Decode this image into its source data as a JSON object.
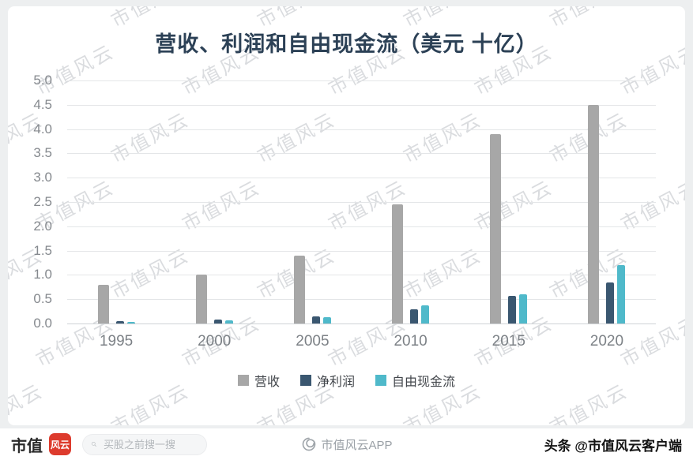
{
  "chart_data": {
    "type": "bar",
    "title": "营收、利润和自由现金流（美元 十亿）",
    "categories": [
      "1995",
      "2000",
      "2005",
      "2010",
      "2015",
      "2020"
    ],
    "series": [
      {
        "name": "营收",
        "color": "#a7a7a7",
        "values": [
          0.8,
          1.0,
          1.4,
          2.45,
          3.9,
          4.5
        ]
      },
      {
        "name": "净利润",
        "color": "#3a5770",
        "values": [
          0.05,
          0.08,
          0.15,
          0.3,
          0.57,
          0.85
        ]
      },
      {
        "name": "自由现金流",
        "color": "#4fb9ca",
        "values": [
          0.04,
          0.06,
          0.13,
          0.38,
          0.6,
          1.2
        ]
      }
    ],
    "xlabel": "",
    "ylabel": "",
    "ylim": [
      0,
      5
    ],
    "ytick_step": 0.5,
    "ytick_labels": [
      "5.0",
      "4.5",
      "4.0",
      "3.5",
      "3.0",
      "2.5",
      "2.0",
      "1.5",
      "1.0",
      "0.5",
      "0.0"
    ],
    "grid": true,
    "legend_position": "bottom"
  },
  "watermark": {
    "text": "市值风云"
  },
  "footer": {
    "brand_prefix": "市值",
    "brand_seal": "风云",
    "seal_color": "#dd3b2d",
    "search_placeholder": "买股之前搜一搜",
    "app_name": "市值风云APP",
    "credit": "头条 @市值风云客户端"
  }
}
